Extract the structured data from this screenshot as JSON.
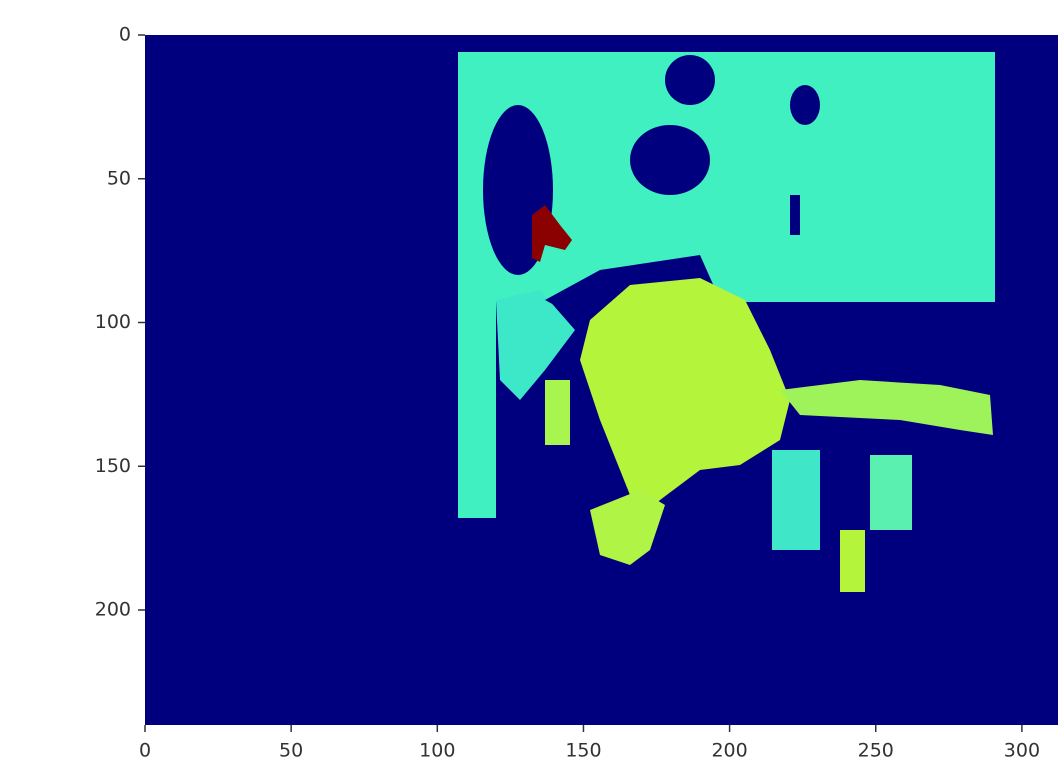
{
  "chart_data": {
    "type": "image",
    "xlim": [
      0,
      320
    ],
    "ylim": [
      240,
      0
    ],
    "xticks": [
      0,
      50,
      100,
      150,
      200,
      250,
      300
    ],
    "yticks": [
      0,
      50,
      100,
      150,
      200
    ]
  }
}
